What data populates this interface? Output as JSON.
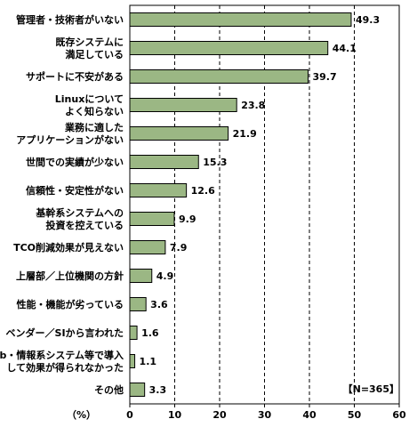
{
  "chart_data": {
    "type": "bar",
    "orientation": "horizontal",
    "categories": [
      [
        "管理者・技術者がいない"
      ],
      [
        "既存システムに",
        "満足している"
      ],
      [
        "サポートに不安がある"
      ],
      [
        "Linuxについて",
        "よく知らない"
      ],
      [
        "業務に適した",
        "アプリケーションがない"
      ],
      [
        "世間での実績が少ない"
      ],
      [
        "信頼性・安定性がない"
      ],
      [
        "基幹系システムへの",
        "投資を控えている"
      ],
      [
        "TCO削減効果が見えない"
      ],
      [
        "上層部／上位機関の方針"
      ],
      [
        "性能・機能が劣っている"
      ],
      [
        "ベンダー／SIから言われた"
      ],
      [
        "Web・情報系システム等で導入",
        "して効果が得られなかった"
      ],
      [
        "その他"
      ]
    ],
    "values": [
      49.3,
      44.1,
      39.7,
      23.8,
      21.9,
      15.3,
      12.6,
      9.9,
      7.9,
      4.9,
      3.6,
      1.6,
      1.1,
      3.3
    ],
    "value_labels": [
      "49.3",
      "44.1",
      "39.7",
      "23.8",
      "21.9",
      "15.3",
      "12.6",
      "9.9",
      "7.9",
      "4.9",
      "3.6",
      "1.6",
      "1.1",
      "3.3"
    ],
    "xlim": [
      0,
      60
    ],
    "xticks": [
      "0",
      "10",
      "20",
      "30",
      "40",
      "50",
      "60"
    ],
    "xunit": "（%）",
    "note": "【N=365】",
    "grid": "vertical-dashed",
    "bar_color": "#9bb784"
  }
}
